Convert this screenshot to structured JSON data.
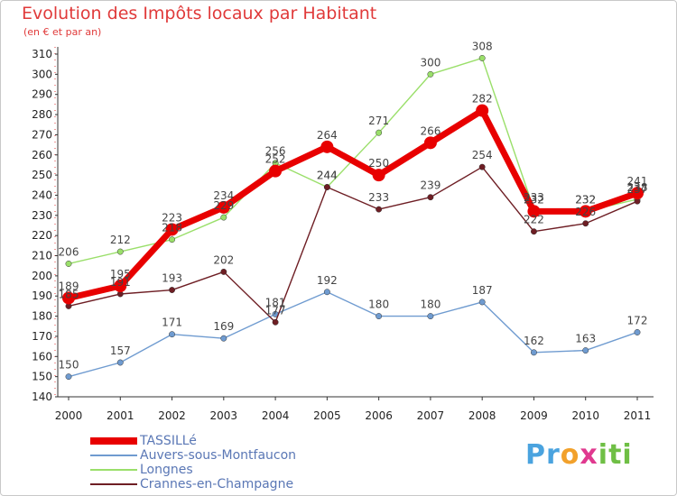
{
  "chart_data": {
    "type": "line",
    "title": "Evolution des Impôts locaux par Habitant",
    "subtitle": "(en € et par an)",
    "xlabel": "",
    "ylabel": "",
    "categories": [
      "2000",
      "2001",
      "2002",
      "2003",
      "2004",
      "2005",
      "2006",
      "2007",
      "2008",
      "2009",
      "2010",
      "2011"
    ],
    "ylim": [
      140,
      310
    ],
    "yticks": [
      140,
      150,
      160,
      170,
      180,
      190,
      200,
      210,
      220,
      230,
      240,
      250,
      260,
      270,
      280,
      290,
      300,
      310
    ],
    "grid": false,
    "legend_position": "bottom-left",
    "series": [
      {
        "name": "TASSILLé",
        "color": "#e80000",
        "values": [
          189,
          195,
          223,
          234,
          252,
          264,
          250,
          266,
          282,
          232,
          232,
          241
        ]
      },
      {
        "name": "Auvers-sous-Montfaucon",
        "color": "#6f9bd0",
        "values": [
          150,
          157,
          171,
          169,
          181,
          192,
          180,
          180,
          187,
          162,
          163,
          172
        ]
      },
      {
        "name": "Longnes",
        "color": "#9adf6a",
        "values": [
          206,
          212,
          218,
          229,
          256,
          244,
          271,
          300,
          308,
          233,
          232,
          238
        ]
      },
      {
        "name": "Crannes-en-Champagne",
        "color": "#6e1e24",
        "values": [
          185,
          191,
          193,
          202,
          177,
          244,
          233,
          239,
          254,
          222,
          226,
          237
        ]
      }
    ]
  },
  "logo": {
    "part1": "Pr",
    "part2": "o",
    "part3": "x",
    "part4": "iti"
  }
}
